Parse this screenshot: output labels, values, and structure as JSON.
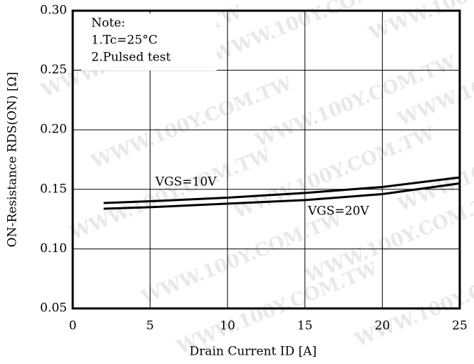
{
  "chart_data": {
    "type": "line",
    "x": [
      2,
      5,
      10,
      15,
      20,
      25
    ],
    "series": [
      {
        "name": "VGS=10V",
        "color": "#000000",
        "values": [
          0.1385,
          0.14,
          0.143,
          0.147,
          0.152,
          0.16
        ]
      },
      {
        "name": "VGS=20V",
        "color": "#000000",
        "values": [
          0.1337,
          0.135,
          0.138,
          0.141,
          0.146,
          0.155
        ]
      }
    ],
    "xlim": [
      0,
      25
    ],
    "xticks": [
      0,
      5,
      10,
      15,
      20,
      25
    ],
    "ylim": [
      0.05,
      0.3
    ],
    "yticks": [
      {
        "value": 0.05,
        "label": "0.05"
      },
      {
        "value": 0.1,
        "label": "0.10"
      },
      {
        "value": 0.15,
        "label": "0.15"
      },
      {
        "value": 0.2,
        "label": "0.20"
      },
      {
        "value": 0.25,
        "label": "0.25"
      },
      {
        "value": 0.3,
        "label": "0.30"
      }
    ],
    "xlabel": "Drain  Current ID [A]",
    "ylabel": "ON-Resistance RDS(ON) [Ω]",
    "annotations": [
      "Note:",
      "1.Tc=25°C",
      "2.Pulsed  test"
    ],
    "watermark": "WWW.100Y.COM.TW",
    "grid": true
  }
}
